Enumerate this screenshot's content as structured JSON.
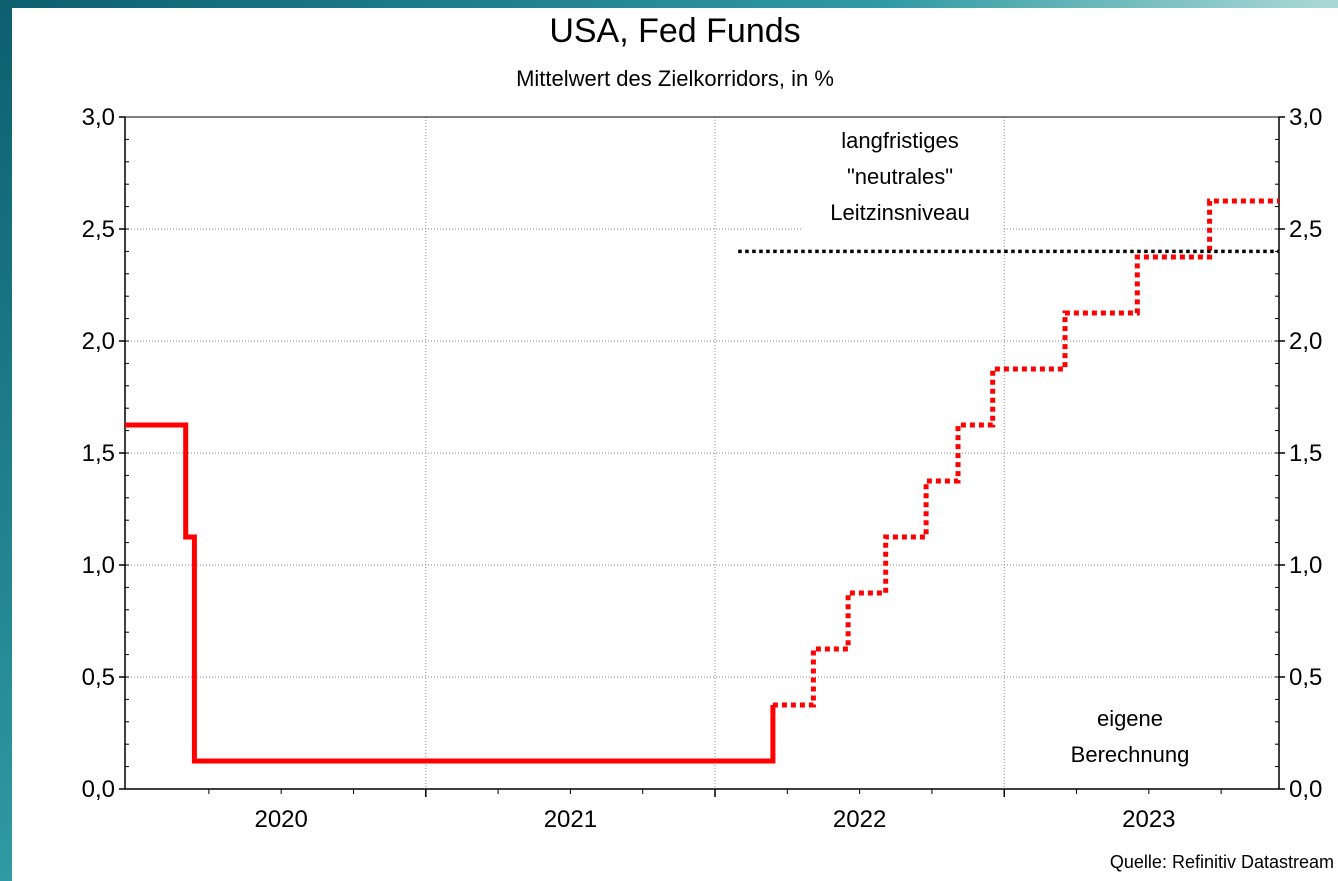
{
  "chart_data": {
    "type": "line",
    "title": "USA, Fed Funds",
    "subtitle": "Mittelwert des Zielkorridors, in %",
    "source": "Quelle: Refinitiv Datastream",
    "ylim": [
      0,
      3.0
    ],
    "yticks": [
      "0,0",
      "0,5",
      "1,0",
      "1,5",
      "2,0",
      "2,5",
      "3,0"
    ],
    "ytick_values": [
      0,
      0.5,
      1.0,
      1.5,
      2.0,
      2.5,
      3.0
    ],
    "xlim": [
      2019.96,
      2023.95
    ],
    "xticks": [
      "2020",
      "2021",
      "2022",
      "2023"
    ],
    "xtick_centers": [
      2020.5,
      2021.5,
      2022.5,
      2023.5
    ],
    "year_boundaries": [
      2021.0,
      2022.0,
      2023.0
    ],
    "grid": true,
    "series": [
      {
        "color": "#ff0000",
        "style": "solid",
        "points": [
          [
            2019.96,
            1.625
          ],
          [
            2020.17,
            1.625
          ],
          [
            2020.17,
            1.125
          ],
          [
            2020.2,
            1.125
          ],
          [
            2020.2,
            0.125
          ],
          [
            2022.2,
            0.125
          ],
          [
            2022.2,
            0.375
          ]
        ]
      },
      {
        "color": "#ff0000",
        "style": "dotted",
        "points": [
          [
            2022.2,
            0.375
          ],
          [
            2022.34,
            0.375
          ],
          [
            2022.34,
            0.625
          ],
          [
            2022.46,
            0.625
          ],
          [
            2022.46,
            0.875
          ],
          [
            2022.59,
            0.875
          ],
          [
            2022.59,
            1.125
          ],
          [
            2022.73,
            1.125
          ],
          [
            2022.73,
            1.375
          ],
          [
            2022.84,
            1.375
          ],
          [
            2022.84,
            1.625
          ],
          [
            2022.96,
            1.625
          ],
          [
            2022.96,
            1.875
          ],
          [
            2023.21,
            1.875
          ],
          [
            2023.21,
            2.125
          ],
          [
            2023.46,
            2.125
          ],
          [
            2023.46,
            2.375
          ],
          [
            2023.71,
            2.375
          ],
          [
            2023.71,
            2.625
          ],
          [
            2023.95,
            2.625
          ]
        ]
      },
      {
        "color": "#000000",
        "style": "dotted",
        "points": [
          [
            2022.08,
            2.4
          ],
          [
            2023.95,
            2.4
          ]
        ]
      }
    ],
    "annotations": {
      "neutral": [
        "langfristiges",
        "\"neutrales\"",
        "Leitzinsniveau"
      ],
      "own": [
        "eigene",
        "Berechnung"
      ]
    }
  }
}
